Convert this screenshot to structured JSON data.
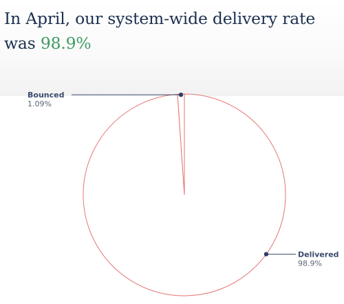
{
  "headline": {
    "prefix": "In April, our system-wide delivery rate was ",
    "highlight": "98.9%"
  },
  "colors": {
    "title": "#1c3150",
    "highlight": "#3e9b63",
    "slice_stroke": "#e57373",
    "marker": "#2f3e66",
    "leader": "#3a4a6b"
  },
  "chart_data": {
    "type": "pie",
    "slices": [
      {
        "label": "Bounced",
        "value": 1.09,
        "value_label": "1.09%"
      },
      {
        "label": "Delivered",
        "value": 98.9,
        "value_label": "98.9%"
      }
    ]
  }
}
